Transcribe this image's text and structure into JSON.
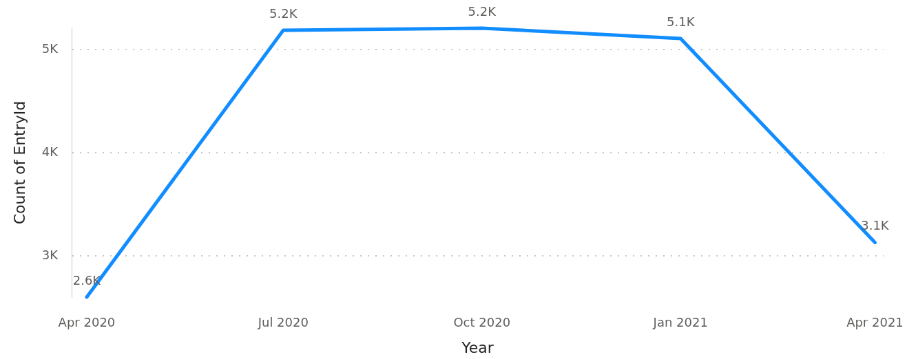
{
  "chart_data": {
    "type": "line",
    "xlabel": "Year",
    "ylabel": "Count of EntryId",
    "x": [
      "2020-04",
      "2020-07",
      "2020-10",
      "2021-01",
      "2021-04"
    ],
    "values": [
      2600,
      5190,
      5210,
      5110,
      3130
    ],
    "color": "#118dff",
    "value_labels": [
      "2.6K",
      "5.2K",
      "5.2K",
      "5.1K",
      "3.1K"
    ],
    "xlim": [
      "2020-03-25",
      "2021-04-05"
    ],
    "xticks": [
      {
        "value": "2020-04",
        "label": "Apr 2020"
      },
      {
        "value": "2020-07",
        "label": "Jul 2020"
      },
      {
        "value": "2020-10",
        "label": "Oct 2020"
      },
      {
        "value": "2021-01",
        "label": "Jan 2021"
      },
      {
        "value": "2021-04",
        "label": "Apr 2021"
      }
    ],
    "ylim": [
      2600,
      5210
    ],
    "yticks": [
      {
        "value": 3000,
        "label": "3K"
      },
      {
        "value": 4000,
        "label": "4K"
      },
      {
        "value": 5000,
        "label": "5K"
      }
    ],
    "grid": "y",
    "marker": "none",
    "line_style": "solid"
  }
}
